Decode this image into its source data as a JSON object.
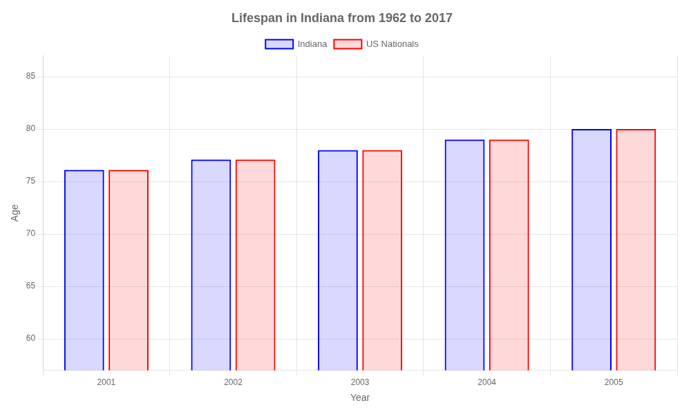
{
  "chart_data": {
    "type": "bar",
    "title": "Lifespan in Indiana from 1962 to 2017",
    "x_label": "Year",
    "y_label": "Age",
    "categories": [
      "2001",
      "2002",
      "2003",
      "2004",
      "2005"
    ],
    "series": [
      {
        "name": "Indiana",
        "color": "#0000ff",
        "values": [
          76.1,
          77.1,
          78.0,
          79.0,
          80.0
        ]
      },
      {
        "name": "US Nationals",
        "color": "#ff0000",
        "values": [
          76.1,
          77.1,
          78.0,
          79.0,
          80.0
        ]
      }
    ],
    "ylim": [
      57,
      87
    ],
    "yticks": [
      60,
      65,
      70,
      75,
      80,
      85
    ],
    "grid": true,
    "legend": "top"
  }
}
